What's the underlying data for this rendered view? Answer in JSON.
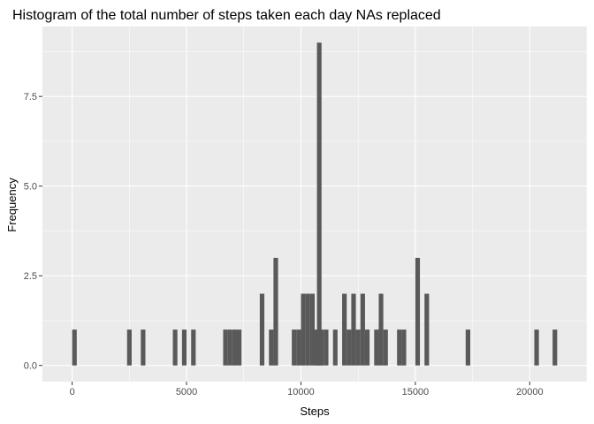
{
  "chart_data": {
    "type": "bar",
    "title": "Histogram of the total number of steps taken each day NAs replaced",
    "xlabel": "Steps",
    "ylabel": "Frequency",
    "xlim": [
      -1300,
      22500
    ],
    "ylim": [
      -0.45,
      9.45
    ],
    "x_ticks": [
      0,
      5000,
      10000,
      15000,
      20000
    ],
    "x_tick_labels": [
      "0",
      "5000",
      "10000",
      "15000",
      "20000"
    ],
    "y_ticks": [
      0,
      2.5,
      5,
      7.5
    ],
    "y_tick_labels": [
      "0.0",
      "2.5",
      "5.0",
      "7.5"
    ],
    "bin_width": 200,
    "bins": [
      {
        "x": 100,
        "count": 1
      },
      {
        "x": 2500,
        "count": 1
      },
      {
        "x": 3100,
        "count": 1
      },
      {
        "x": 4500,
        "count": 1
      },
      {
        "x": 4900,
        "count": 1
      },
      {
        "x": 5300,
        "count": 1
      },
      {
        "x": 6700,
        "count": 1
      },
      {
        "x": 6900,
        "count": 1
      },
      {
        "x": 7100,
        "count": 1
      },
      {
        "x": 7300,
        "count": 1
      },
      {
        "x": 8300,
        "count": 2
      },
      {
        "x": 8700,
        "count": 1
      },
      {
        "x": 8900,
        "count": 3
      },
      {
        "x": 9700,
        "count": 1
      },
      {
        "x": 9900,
        "count": 1
      },
      {
        "x": 10100,
        "count": 2
      },
      {
        "x": 10300,
        "count": 2
      },
      {
        "x": 10500,
        "count": 2
      },
      {
        "x": 10700,
        "count": 1
      },
      {
        "x": 10800,
        "count": 9
      },
      {
        "x": 10900,
        "count": 1
      },
      {
        "x": 11100,
        "count": 1
      },
      {
        "x": 11500,
        "count": 1
      },
      {
        "x": 11900,
        "count": 2
      },
      {
        "x": 12100,
        "count": 1
      },
      {
        "x": 12300,
        "count": 2
      },
      {
        "x": 12500,
        "count": 1
      },
      {
        "x": 12700,
        "count": 2
      },
      {
        "x": 12900,
        "count": 1
      },
      {
        "x": 13300,
        "count": 1
      },
      {
        "x": 13500,
        "count": 2
      },
      {
        "x": 13700,
        "count": 1
      },
      {
        "x": 14300,
        "count": 1
      },
      {
        "x": 14500,
        "count": 1
      },
      {
        "x": 15100,
        "count": 3
      },
      {
        "x": 15500,
        "count": 2
      },
      {
        "x": 17300,
        "count": 1
      },
      {
        "x": 20300,
        "count": 1
      },
      {
        "x": 21100,
        "count": 1
      }
    ],
    "grid": true,
    "legend": "none"
  },
  "colors": {
    "panel_background": "#ebebeb",
    "grid_major": "#ffffff",
    "bar_fill": "#595959"
  }
}
